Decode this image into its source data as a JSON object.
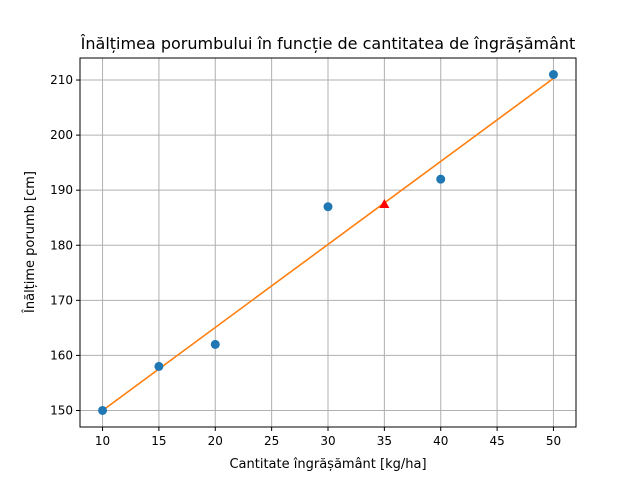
{
  "chart_data": {
    "type": "scatter",
    "title": "Înălțimea porumbului în funcție de cantitatea de îngrășământ",
    "xlabel": "Cantitate îngrășământ [kg/ha]",
    "ylabel": "Înălțime porumb [cm]",
    "xlim": [
      8,
      52
    ],
    "ylim": [
      147,
      214
    ],
    "xticks": [
      10,
      15,
      20,
      25,
      30,
      35,
      40,
      45,
      50
    ],
    "yticks": [
      150,
      160,
      170,
      180,
      190,
      200,
      210
    ],
    "grid": true,
    "series": [
      {
        "type": "scatter",
        "marker": "circle",
        "color": "#1f77b4",
        "x": [
          10,
          15,
          20,
          30,
          40,
          50
        ],
        "y": [
          150,
          158,
          162,
          187,
          192,
          211
        ]
      },
      {
        "type": "line",
        "color": "#ff7f0e",
        "x": [
          10,
          50
        ],
        "y": [
          150,
          210.3
        ]
      },
      {
        "type": "scatter",
        "marker": "triangle",
        "color": "#ff0000",
        "x": [
          35
        ],
        "y": [
          187.5
        ]
      }
    ]
  }
}
